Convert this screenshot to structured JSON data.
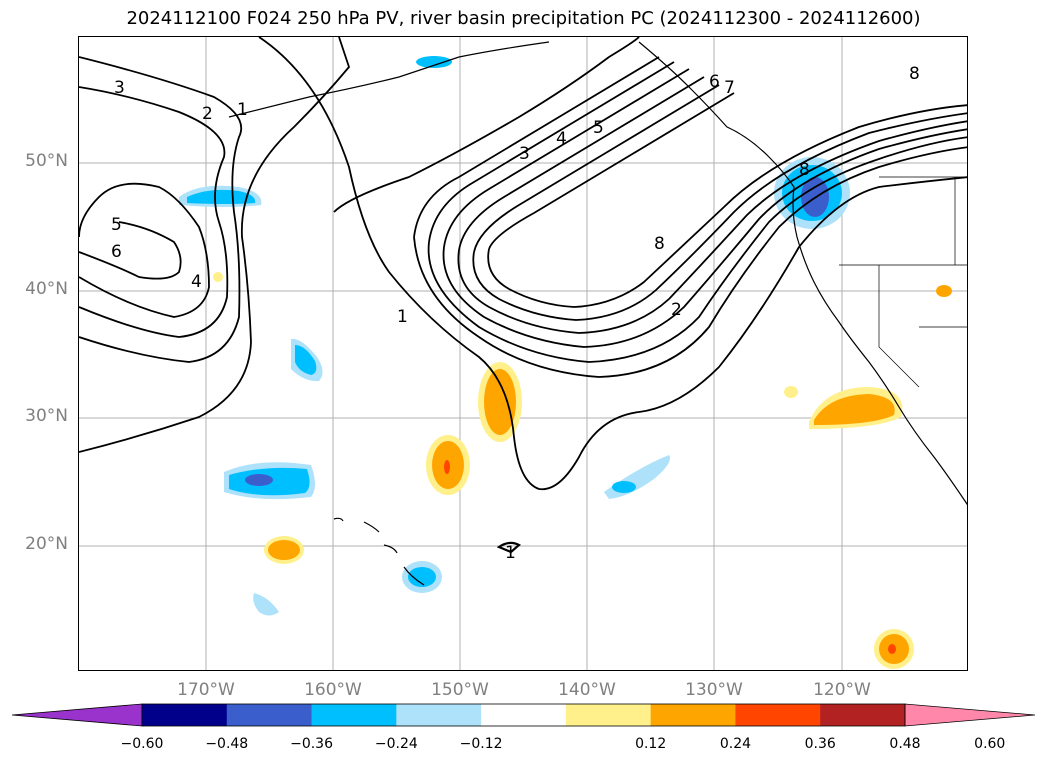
{
  "title": "2024112100 F024 250 hPa PV, river basin precipitation PC (2024112300 - 2024112600)",
  "map": {
    "projection": "PlateCarree",
    "lon_range": [
      -180,
      -110
    ],
    "lat_range": [
      10,
      60
    ],
    "lat_ticks": [
      {
        "value": 50,
        "label": "50°N"
      },
      {
        "value": 40,
        "label": "40°N"
      },
      {
        "value": 30,
        "label": "30°N"
      },
      {
        "value": 20,
        "label": "20°N"
      }
    ],
    "lon_ticks": [
      {
        "value": -170,
        "label": "170°W"
      },
      {
        "value": -160,
        "label": "160°W"
      },
      {
        "value": -150,
        "label": "150°W"
      },
      {
        "value": -140,
        "label": "140°W"
      },
      {
        "value": -130,
        "label": "130°W"
      },
      {
        "value": -120,
        "label": "120°W"
      }
    ],
    "gridlines": true,
    "contour_color": "#000000",
    "contour_labels": [
      "3",
      "2",
      "1",
      "5",
      "6",
      "4",
      "1",
      "3",
      "4",
      "5",
      "6",
      "7",
      "8",
      "8",
      "2",
      "8",
      "1"
    ]
  },
  "colorbar": {
    "colors": [
      "#9933cc",
      "#00008b",
      "#3a5fcd",
      "#00bfff",
      "#ade2fa",
      "#ffffff",
      "#fff08c",
      "#ffa500",
      "#ff4500",
      "#b22222",
      "#ff88aa"
    ],
    "ticks": [
      "−0.60",
      "−0.48",
      "−0.36",
      "−0.24",
      "−0.12",
      "0.12",
      "0.24",
      "0.36",
      "0.48",
      "0.60"
    ],
    "extend": "both"
  }
}
